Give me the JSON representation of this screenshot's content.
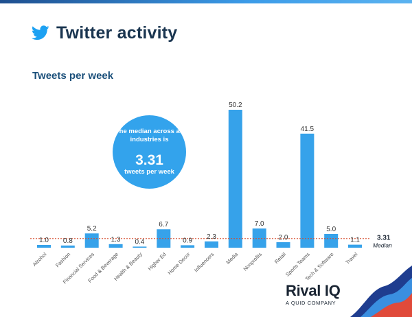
{
  "header": {
    "title": "Twitter activity",
    "subtitle": "Tweets per week"
  },
  "callout": {
    "line1": "The median across all industries is",
    "value": "3.31",
    "line2": "tweets per week"
  },
  "median_label": {
    "value": "3.31",
    "label": "Median"
  },
  "branding": {
    "name": "Rival IQ",
    "tagline": "A QUID COMPANY"
  },
  "colors": {
    "bar": "#36a2ea",
    "median_line": "#d64a2a",
    "title": "#1a3550",
    "subtitle": "#1a4f7a"
  },
  "icons": {
    "logo": "twitter-bird-icon"
  },
  "chart_data": {
    "type": "bar",
    "title": "Tweets per week",
    "categories": [
      "Alcohol",
      "Fashion",
      "Financial Services",
      "Food & Beverage",
      "Health & Beauty",
      "Higher Ed",
      "Home Decor",
      "Influencers",
      "Media",
      "Nonprofits",
      "Retail",
      "Sports Teams",
      "Tech & Software",
      "Travel"
    ],
    "values": [
      1.0,
      0.8,
      5.2,
      1.3,
      0.4,
      6.7,
      0.9,
      2.3,
      50.2,
      7.0,
      2.0,
      41.5,
      5.0,
      1.1
    ],
    "value_labels": [
      "1.0",
      "0.8",
      "5.2",
      "1.3",
      "0.4",
      "6.7",
      "0.9",
      "2.3",
      "50.2",
      "7.0",
      "2.0",
      "41.5",
      "5.0",
      "1.1"
    ],
    "median": 3.31,
    "ylim": [
      0,
      50.2
    ],
    "grid": false,
    "legend": "none"
  }
}
